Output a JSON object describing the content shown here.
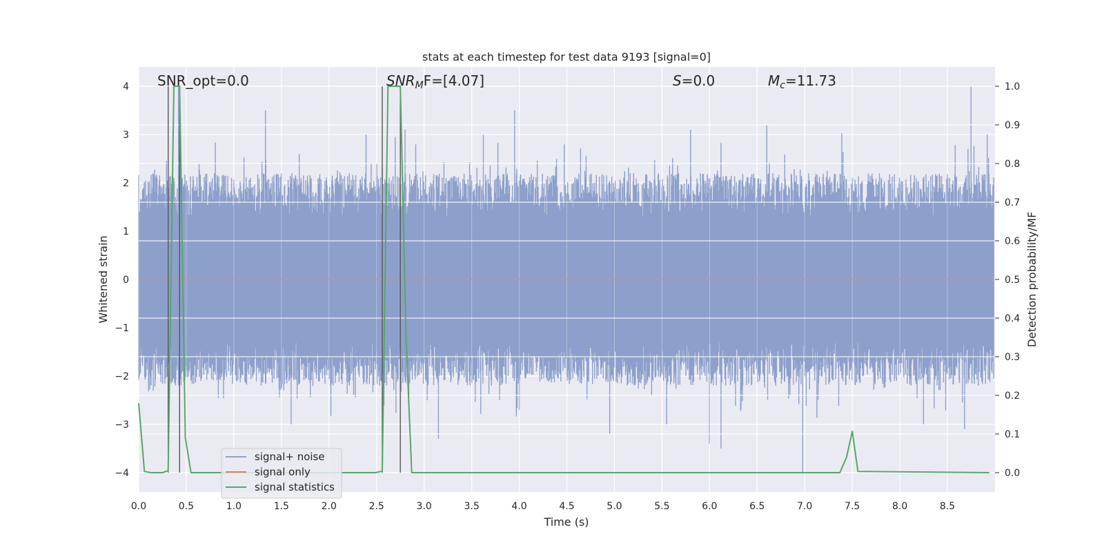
{
  "chart_data": {
    "type": "line",
    "title": "stats at each timestep for test data 9193 [signal=0]",
    "xlabel": "Time (s)",
    "ylabel": "Whitened strain",
    "ylabel_right": "Detection probability/MF",
    "xlim": [
      0.0,
      9.0
    ],
    "ylim": [
      -4.4,
      4.4
    ],
    "ylim_right": [
      -0.05,
      1.05
    ],
    "x_ticks": [
      0.0,
      0.5,
      1.0,
      1.5,
      2.0,
      2.5,
      3.0,
      3.5,
      4.0,
      4.5,
      5.0,
      5.5,
      6.0,
      6.5,
      7.0,
      7.5,
      8.0,
      8.5
    ],
    "x_tick_labels": [
      "0.0",
      "0.5",
      "1.0",
      "1.5",
      "2.0",
      "2.5",
      "3.0",
      "3.5",
      "4.0",
      "4.5",
      "5.0",
      "5.5",
      "6.0",
      "6.5",
      "7.0",
      "7.5",
      "8.0",
      "8.5"
    ],
    "y_ticks": [
      -4,
      -3,
      -2,
      -1,
      0,
      1,
      2,
      3,
      4
    ],
    "y_tick_labels": [
      "−4",
      "−3",
      "−2",
      "−1",
      "0",
      "1",
      "2",
      "3",
      "4"
    ],
    "y_ticks_right": [
      0.0,
      0.1,
      0.2,
      0.3,
      0.4,
      0.5,
      0.6,
      0.7,
      0.8,
      0.9,
      1.0
    ],
    "y_tick_labels_right": [
      "0.0",
      "0.1",
      "0.2",
      "0.3",
      "0.4",
      "0.5",
      "0.6",
      "0.7",
      "0.8",
      "0.9",
      "1.0"
    ],
    "grid": true,
    "legend_placement": "lower-left",
    "annotations": {
      "snr_opt": "SNR_opt=0.0",
      "snr_mf": "SNR",
      "snr_mf_sub": "M",
      "snr_mf_tail": "F=[4.07]",
      "s_label": "S",
      "s_value": "=0.0",
      "mc_label": "M",
      "mc_sub": "c",
      "mc_value": "=11.73"
    },
    "vertical_markers_x": [
      0.31,
      0.43,
      2.56,
      2.75
    ],
    "series": [
      {
        "name": "signal+ noise",
        "color": "#8da0cb",
        "axis": "left",
        "kind": "noise",
        "envelope_mean": 1.75,
        "envelope_spread": 0.45,
        "sample_step": 0.0045,
        "spikes": [
          [
            0.42,
            4.0
          ],
          [
            1.33,
            3.5
          ],
          [
            2.5,
            2.4
          ],
          [
            3.95,
            3.5
          ],
          [
            6.6,
            3.2
          ],
          [
            8.75,
            4.0
          ],
          [
            2.8,
            3.1
          ],
          [
            5.8,
            3.1
          ],
          [
            4.0,
            -2.7
          ],
          [
            3.15,
            -3.3
          ],
          [
            4.95,
            -3.2
          ],
          [
            6.0,
            -3.4
          ],
          [
            6.12,
            -3.5
          ],
          [
            6.98,
            -4.0
          ],
          [
            8.68,
            -3.1
          ],
          [
            1.6,
            -3.0
          ],
          [
            5.55,
            -3.0
          ],
          [
            8.25,
            -3.0
          ]
        ]
      },
      {
        "name": "signal only",
        "color": "#dd8452",
        "axis": "left",
        "x": [
          0.0,
          9.0
        ],
        "y": [
          0.0,
          0.0
        ]
      },
      {
        "name": "signal statistics",
        "color": "#55a868",
        "axis": "right",
        "x": [
          0.0,
          0.06,
          0.13,
          0.25,
          0.31,
          0.37,
          0.43,
          0.49,
          0.55,
          2.49,
          2.56,
          2.62,
          2.75,
          2.81,
          2.87,
          7.37,
          7.44,
          7.5,
          7.56,
          8.94
        ],
        "y": [
          0.18,
          0.003,
          0.0,
          0.0,
          0.005,
          1.0,
          1.0,
          0.09,
          0.0,
          0.0,
          0.004,
          1.0,
          1.0,
          0.35,
          0.0,
          0.0,
          0.04,
          0.107,
          0.003,
          0.0
        ]
      }
    ]
  }
}
